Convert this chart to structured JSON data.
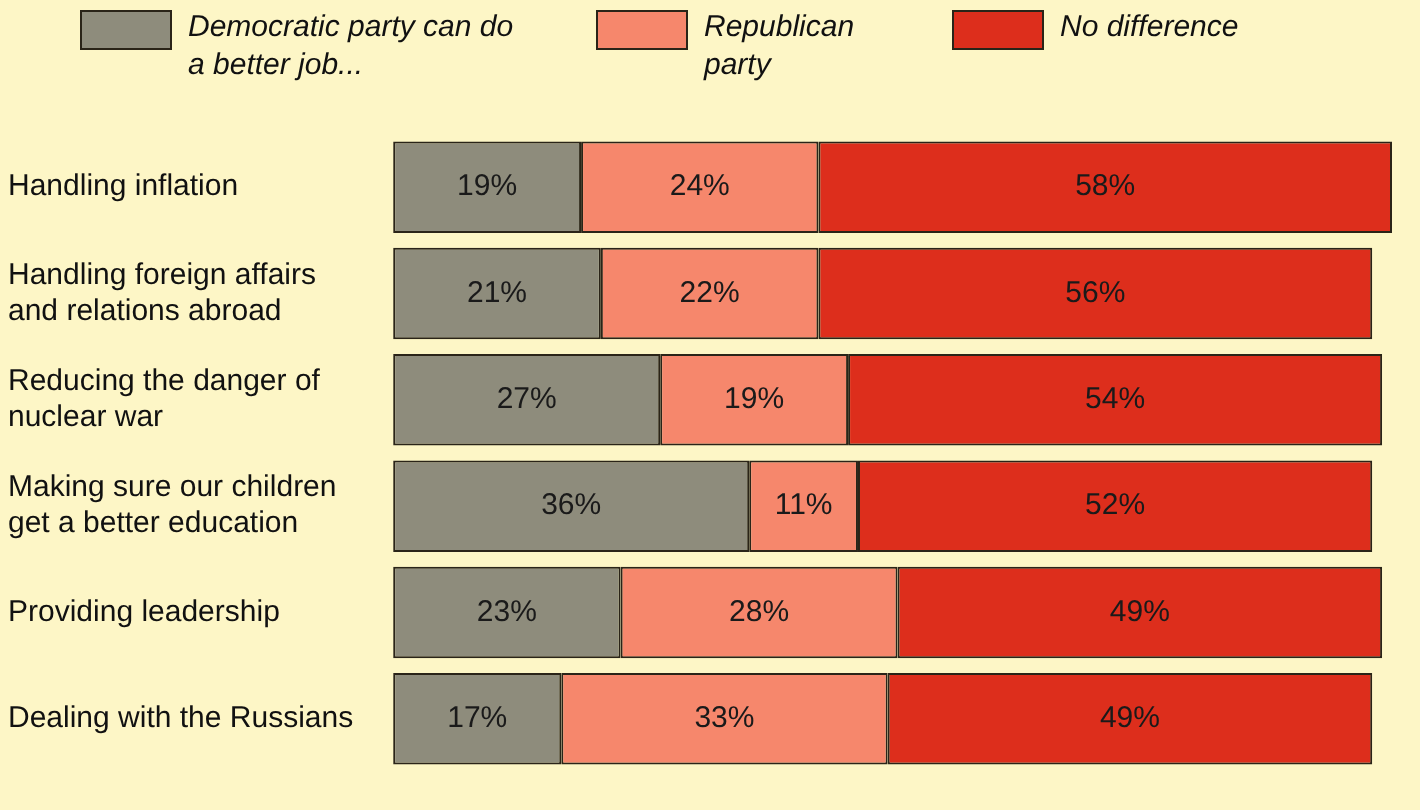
{
  "chart_data": {
    "type": "bar",
    "orientation": "horizontal",
    "stacked": true,
    "legend": "top",
    "tick_labels": "y",
    "categories": [
      "Handling inflation",
      "Handling foreign affairs and relations abroad",
      "Reducing the danger of nuclear war",
      "Making sure our children get a better education",
      "Providing leadership",
      "Dealing with the Russians"
    ],
    "series": [
      {
        "name": "Democratic party can do a better job...",
        "color": "#8e8c7c",
        "values": [
          19,
          21,
          27,
          36,
          23,
          17
        ],
        "value_labels": [
          "19%",
          "21%",
          "27%",
          "36%",
          "23%",
          "17%"
        ]
      },
      {
        "name": "Republican party",
        "color": "#f6876c",
        "values": [
          24,
          22,
          19,
          11,
          28,
          33
        ],
        "value_labels": [
          "24%",
          "22%",
          "19%",
          "11%",
          "28%",
          "33%"
        ]
      },
      {
        "name": "No difference",
        "color": "#dd2e1c",
        "values": [
          58,
          56,
          54,
          52,
          49,
          49
        ],
        "value_labels": [
          "58%",
          "56%",
          "54%",
          "52%",
          "49%",
          "49%"
        ]
      }
    ]
  }
}
